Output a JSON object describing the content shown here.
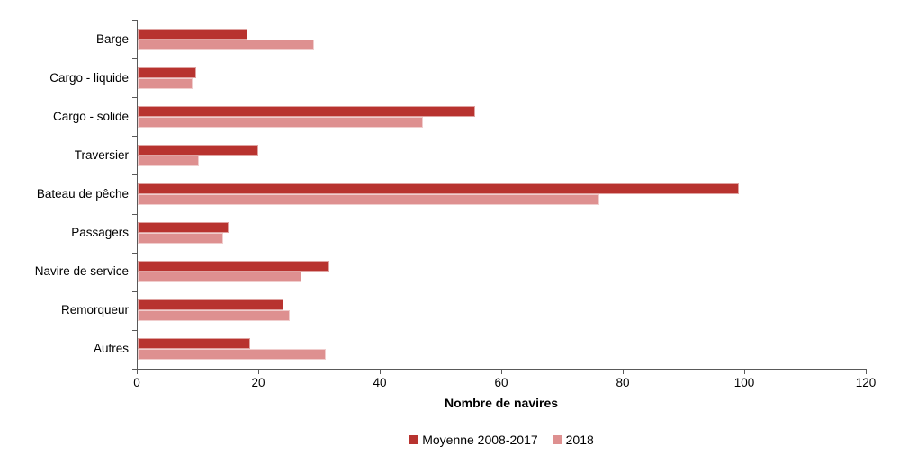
{
  "chart_data": {
    "type": "bar",
    "orientation": "horizontal",
    "title": "",
    "xlabel": "Nombre de navires",
    "ylabel": "",
    "xlim": [
      0,
      120
    ],
    "xticks": [
      0,
      20,
      40,
      60,
      80,
      100,
      120
    ],
    "grid": false,
    "legend_position": "bottom",
    "categories": [
      "Barge",
      "Cargo - liquide",
      "Cargo - solide",
      "Traversier",
      "Bateau de pêche",
      "Passagers",
      "Navire de service",
      "Remorqueur",
      "Autres"
    ],
    "series": [
      {
        "name": "Moyenne 2008-2017",
        "color": "#B8332F",
        "values": [
          18,
          9.7,
          55.5,
          19.8,
          99,
          15,
          31.5,
          24,
          18.5
        ]
      },
      {
        "name": "2018",
        "color": "#DE9090",
        "values": [
          29,
          9,
          47,
          10,
          76,
          14,
          27,
          25,
          31
        ]
      }
    ]
  },
  "colors": {
    "axis": "#595959",
    "text": "#000000",
    "background": "#ffffff"
  }
}
